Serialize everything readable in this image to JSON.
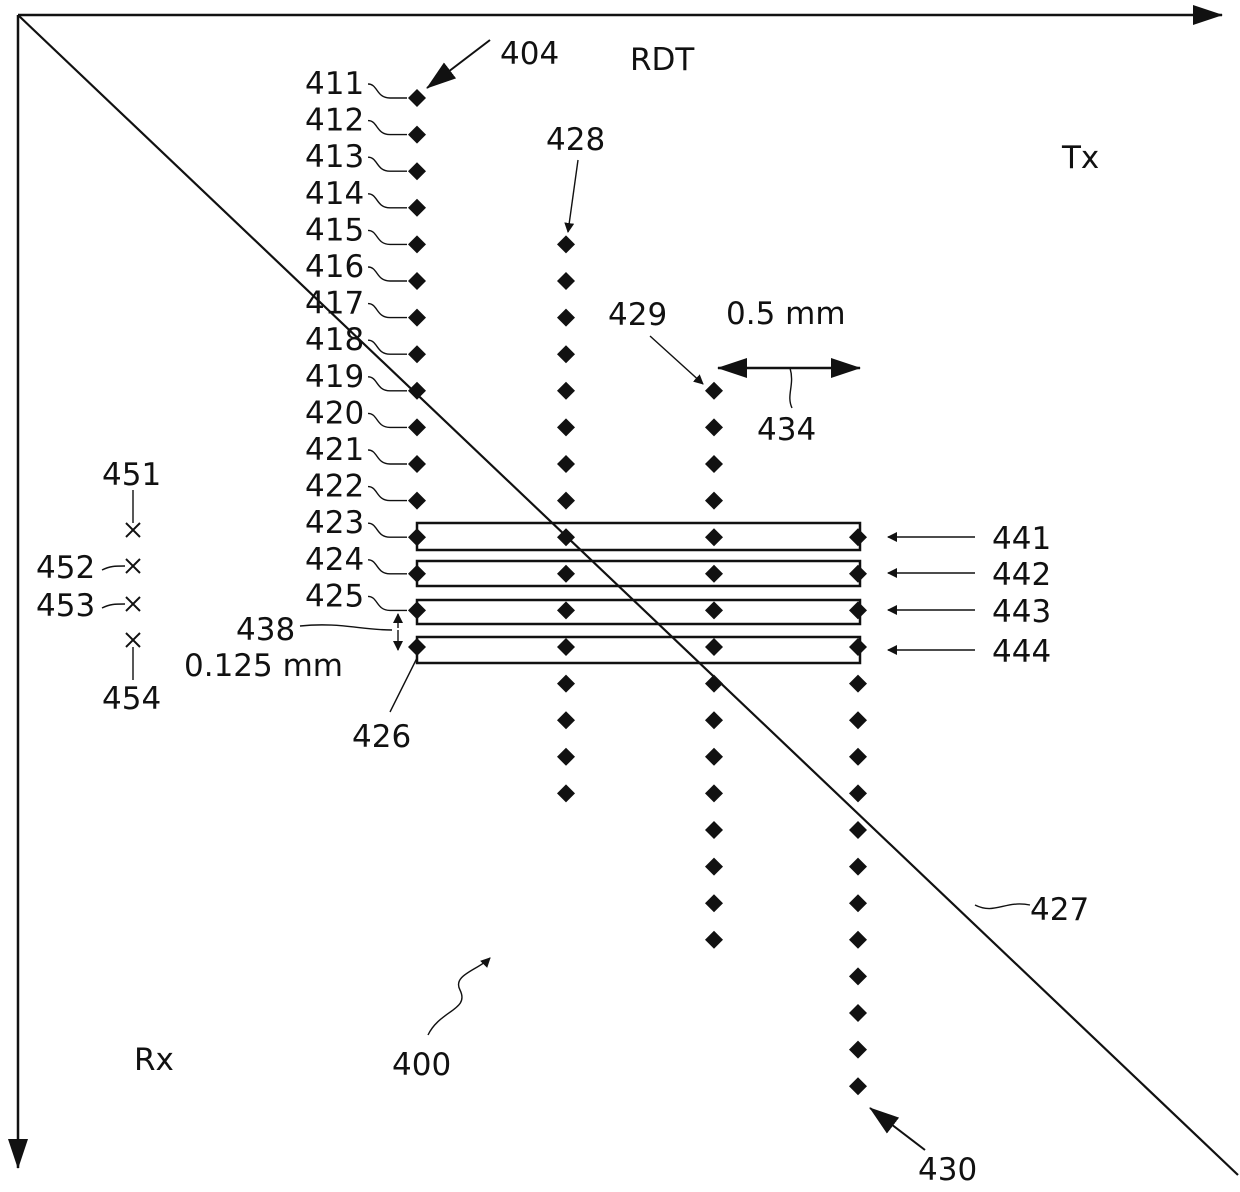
{
  "figure": {
    "ref_400": "400",
    "ref_404": "404",
    "ref_427": "427",
    "ref_428": "428",
    "ref_429": "429",
    "ref_430": "430",
    "ref_434": "434",
    "ref_438": "438",
    "label_rdt": "RDT",
    "label_tx": "Tx",
    "label_rx": "Rx",
    "dim_column_spacing": "0.5 mm",
    "dim_row_spacing": "0.125 mm",
    "column_404_labels": [
      "411",
      "412",
      "413",
      "414",
      "415",
      "416",
      "417",
      "418",
      "419",
      "420",
      "421",
      "422",
      "423",
      "424",
      "425",
      "426"
    ],
    "band_labels": [
      "441",
      "442",
      "443",
      "444"
    ],
    "cross_labels": [
      "451",
      "452",
      "453",
      "454"
    ],
    "points_per_column": 16,
    "column_count": 4
  },
  "colors": {
    "ink": "#111111",
    "background": "#ffffff"
  }
}
